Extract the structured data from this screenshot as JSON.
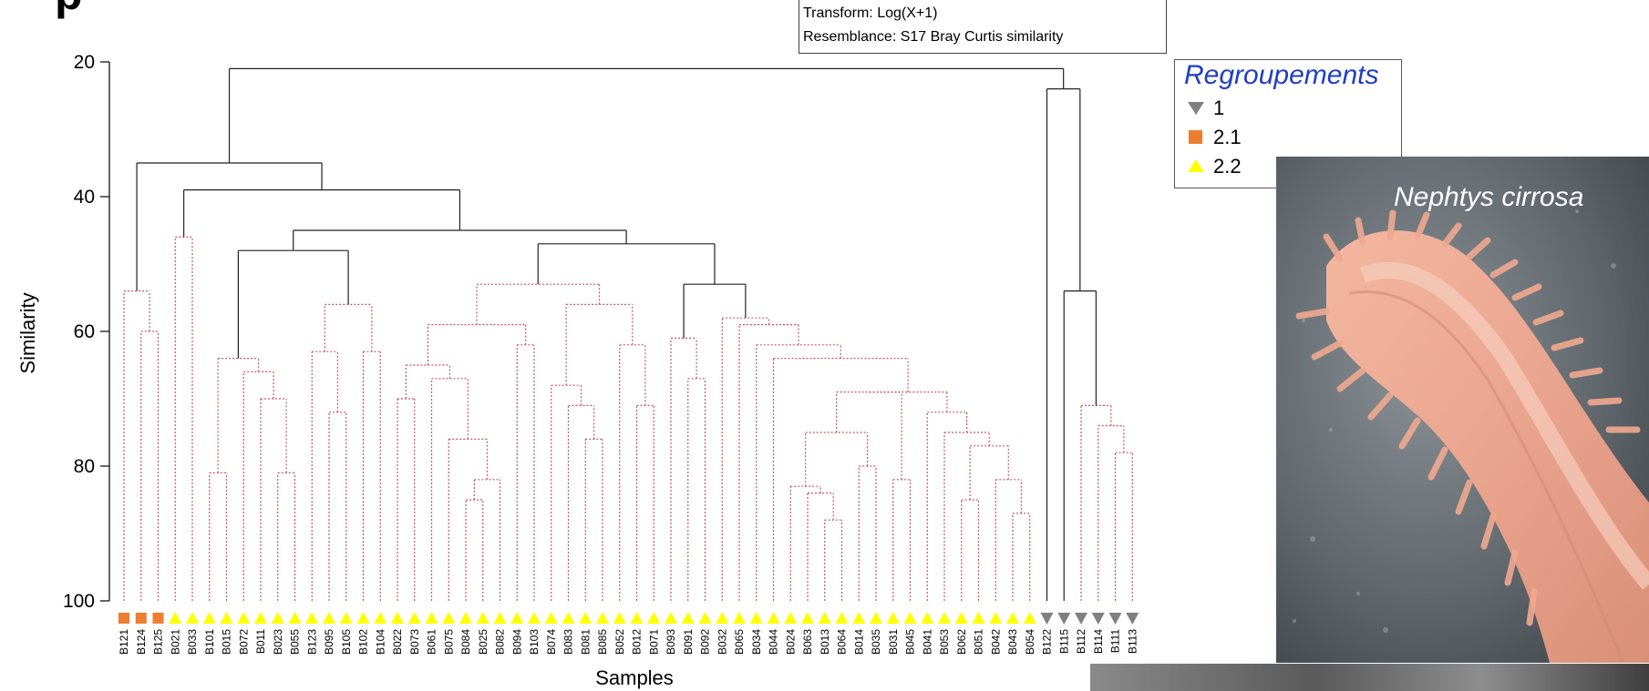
{
  "header": {
    "title_fragment": "p",
    "transform_label": "Transform: Log(X+1)",
    "resemblance_label": "Resemblance: S17 Bray Curtis similarity"
  },
  "legend": {
    "title": "Regroupements",
    "items": [
      {
        "label": "1",
        "symbol": "triangle-down",
        "color": "#808080"
      },
      {
        "label": "2.1",
        "symbol": "square",
        "color": "#ed7d31"
      },
      {
        "label": "2.2",
        "symbol": "triangle-up",
        "color": "#ffff00"
      }
    ]
  },
  "photo": {
    "caption": "Nephtys cirrosa"
  },
  "chart_data": {
    "type": "dendrogram",
    "ylabel": "Similarity",
    "xlabel": "Samples",
    "ylim": [
      100,
      20
    ],
    "yticks": [
      20,
      40,
      60,
      80,
      100
    ],
    "colors": {
      "solid": "#222222",
      "dotted": "#d0555f"
    },
    "leaves": [
      {
        "id": "B121",
        "group": "2.1"
      },
      {
        "id": "B124",
        "group": "2.1"
      },
      {
        "id": "B125",
        "group": "2.1"
      },
      {
        "id": "B021",
        "group": "2.2"
      },
      {
        "id": "B033",
        "group": "2.2"
      },
      {
        "id": "B101",
        "group": "2.2"
      },
      {
        "id": "B015",
        "group": "2.2"
      },
      {
        "id": "B072",
        "group": "2.2"
      },
      {
        "id": "B011",
        "group": "2.2"
      },
      {
        "id": "B023",
        "group": "2.2"
      },
      {
        "id": "B055",
        "group": "2.2"
      },
      {
        "id": "B123",
        "group": "2.2"
      },
      {
        "id": "B095",
        "group": "2.2"
      },
      {
        "id": "B105",
        "group": "2.2"
      },
      {
        "id": "B102",
        "group": "2.2"
      },
      {
        "id": "B104",
        "group": "2.2"
      },
      {
        "id": "B022",
        "group": "2.2"
      },
      {
        "id": "B073",
        "group": "2.2"
      },
      {
        "id": "B061",
        "group": "2.2"
      },
      {
        "id": "B075",
        "group": "2.2"
      },
      {
        "id": "B084",
        "group": "2.2"
      },
      {
        "id": "B025",
        "group": "2.2"
      },
      {
        "id": "B082",
        "group": "2.2"
      },
      {
        "id": "B094",
        "group": "2.2"
      },
      {
        "id": "B103",
        "group": "2.2"
      },
      {
        "id": "B074",
        "group": "2.2"
      },
      {
        "id": "B083",
        "group": "2.2"
      },
      {
        "id": "B081",
        "group": "2.2"
      },
      {
        "id": "B085",
        "group": "2.2"
      },
      {
        "id": "B052",
        "group": "2.2"
      },
      {
        "id": "B012",
        "group": "2.2"
      },
      {
        "id": "B071",
        "group": "2.2"
      },
      {
        "id": "B093",
        "group": "2.2"
      },
      {
        "id": "B091",
        "group": "2.2"
      },
      {
        "id": "B092",
        "group": "2.2"
      },
      {
        "id": "B032",
        "group": "2.2"
      },
      {
        "id": "B065",
        "group": "2.2"
      },
      {
        "id": "B034",
        "group": "2.2"
      },
      {
        "id": "B044",
        "group": "2.2"
      },
      {
        "id": "B024",
        "group": "2.2"
      },
      {
        "id": "B063",
        "group": "2.2"
      },
      {
        "id": "B013",
        "group": "2.2"
      },
      {
        "id": "B064",
        "group": "2.2"
      },
      {
        "id": "B014",
        "group": "2.2"
      },
      {
        "id": "B035",
        "group": "2.2"
      },
      {
        "id": "B031",
        "group": "2.2"
      },
      {
        "id": "B045",
        "group": "2.2"
      },
      {
        "id": "B041",
        "group": "2.2"
      },
      {
        "id": "B053",
        "group": "2.2"
      },
      {
        "id": "B062",
        "group": "2.2"
      },
      {
        "id": "B051",
        "group": "2.2"
      },
      {
        "id": "B042",
        "group": "2.2"
      },
      {
        "id": "B043",
        "group": "2.2"
      },
      {
        "id": "B054",
        "group": "2.2"
      },
      {
        "id": "B122",
        "group": "1"
      },
      {
        "id": "B115",
        "group": "1"
      },
      {
        "id": "B112",
        "group": "1"
      },
      {
        "id": "B114",
        "group": "1"
      },
      {
        "id": "B111",
        "group": "1"
      },
      {
        "id": "B113",
        "group": "1"
      }
    ],
    "merges": [
      {
        "a": "B121",
        "b": "B124",
        "sim": 54,
        "style": "dotted"
      },
      {
        "a": "B124",
        "b": "B125",
        "sim": 60,
        "style": "dotted"
      },
      {
        "a": "B021",
        "b": "B033",
        "sim": 46,
        "style": "dotted"
      },
      {
        "a": "B015",
        "b": "B072",
        "sim": 64,
        "style": "dotted"
      },
      {
        "a": "B072",
        "b": "B011",
        "sim": 66,
        "style": "dotted"
      },
      {
        "a": "B101",
        "b": "B015",
        "sim": 81,
        "style": "dotted"
      },
      {
        "a": "B011",
        "b": "B023",
        "sim": 70,
        "style": "dotted"
      },
      {
        "a": "B023",
        "b": "B055",
        "sim": 81,
        "style": "dotted"
      },
      {
        "a": "B123",
        "b": "B095",
        "sim": 63,
        "style": "dotted"
      },
      {
        "a": "B095",
        "b": "B105",
        "sim": 72,
        "style": "dotted"
      },
      {
        "a": "B123",
        "b": "B102",
        "sim": 56,
        "style": "dotted"
      },
      {
        "a": "B102",
        "b": "B104",
        "sim": 63,
        "style": "dotted"
      },
      {
        "a": "B022",
        "b": "B073",
        "sim": 70,
        "style": "dotted"
      },
      {
        "a": "B022",
        "b": "B061",
        "sim": 65,
        "style": "dotted"
      },
      {
        "a": "B061",
        "b": "B075",
        "sim": 67,
        "style": "dotted"
      },
      {
        "a": "B075",
        "b": "B084",
        "sim": 76,
        "style": "dotted"
      },
      {
        "a": "B084",
        "b": "B025",
        "sim": 85,
        "style": "dotted"
      },
      {
        "a": "B025",
        "b": "B082",
        "sim": 82,
        "style": "dotted"
      },
      {
        "a": "B094",
        "b": "B103",
        "sim": 62,
        "style": "dotted"
      },
      {
        "a": "B022",
        "b": "B094",
        "sim": 59,
        "style": "dotted"
      },
      {
        "a": "B074",
        "b": "B083",
        "sim": 68,
        "style": "dotted"
      },
      {
        "a": "B083",
        "b": "B081",
        "sim": 71,
        "style": "dotted"
      },
      {
        "a": "B081",
        "b": "B085",
        "sim": 76,
        "style": "dotted"
      },
      {
        "a": "B052",
        "b": "B012",
        "sim": 62,
        "style": "dotted"
      },
      {
        "a": "B012",
        "b": "B071",
        "sim": 71,
        "style": "dotted"
      },
      {
        "a": "B074",
        "b": "B052",
        "sim": 56,
        "style": "dotted"
      },
      {
        "a": "B022",
        "b": "B074",
        "sim": 53,
        "style": "dotted"
      },
      {
        "a": "B093",
        "b": "B091",
        "sim": 61,
        "style": "dotted"
      },
      {
        "a": "B091",
        "b": "B092",
        "sim": 67,
        "style": "dotted"
      },
      {
        "a": "B032",
        "b": "B065",
        "sim": 58,
        "style": "dotted"
      },
      {
        "a": "B065",
        "b": "B034",
        "sim": 59,
        "style": "dotted"
      },
      {
        "a": "B034",
        "b": "B044",
        "sim": 62,
        "style": "dotted"
      },
      {
        "a": "B044",
        "b": "B024",
        "sim": 64,
        "style": "dotted"
      },
      {
        "a": "B024",
        "b": "B063",
        "sim": 83,
        "style": "dotted"
      },
      {
        "a": "B063",
        "b": "B013",
        "sim": 84,
        "style": "dotted"
      },
      {
        "a": "B013",
        "b": "B064",
        "sim": 88,
        "style": "dotted"
      },
      {
        "a": "B024",
        "b": "B014",
        "sim": 75,
        "style": "dotted"
      },
      {
        "a": "B014",
        "b": "B035",
        "sim": 80,
        "style": "dotted"
      },
      {
        "a": "B024",
        "b": "B031",
        "sim": 69,
        "style": "dotted"
      },
      {
        "a": "B031",
        "b": "B045",
        "sim": 82,
        "style": "dotted"
      },
      {
        "a": "B031",
        "b": "B041",
        "sim": 69,
        "style": "dotted"
      },
      {
        "a": "B041",
        "b": "B053",
        "sim": 72,
        "style": "dotted"
      },
      {
        "a": "B053",
        "b": "B062",
        "sim": 75,
        "style": "dotted"
      },
      {
        "a": "B062",
        "b": "B051",
        "sim": 85,
        "style": "dotted"
      },
      {
        "a": "B062",
        "b": "B042",
        "sim": 77,
        "style": "dotted"
      },
      {
        "a": "B042",
        "b": "B043",
        "sim": 82,
        "style": "dotted"
      },
      {
        "a": "B043",
        "b": "B054",
        "sim": 87,
        "style": "dotted"
      },
      {
        "a": "B093",
        "b": "B032",
        "sim": 53,
        "style": "solid"
      },
      {
        "a": "B022",
        "b": "B093",
        "sim": 47,
        "style": "solid"
      },
      {
        "a": "B015",
        "b": "B123",
        "sim": 48,
        "style": "solid"
      },
      {
        "a": "B015",
        "b": "B022",
        "sim": 45,
        "style": "solid"
      },
      {
        "a": "B021",
        "b": "B015",
        "sim": 39,
        "style": "solid"
      },
      {
        "a": "B121",
        "b": "B021",
        "sim": 35,
        "style": "solid"
      },
      {
        "a": "B112",
        "b": "B114",
        "sim": 71,
        "style": "dotted"
      },
      {
        "a": "B114",
        "b": "B111",
        "sim": 74,
        "style": "dotted"
      },
      {
        "a": "B111",
        "b": "B113",
        "sim": 78,
        "style": "dotted"
      },
      {
        "a": "B115",
        "b": "B112",
        "sim": 54,
        "style": "solid"
      },
      {
        "a": "B122",
        "b": "B115",
        "sim": 24,
        "style": "solid"
      },
      {
        "a": "B121",
        "b": "B122",
        "sim": 21,
        "style": "solid"
      }
    ]
  }
}
